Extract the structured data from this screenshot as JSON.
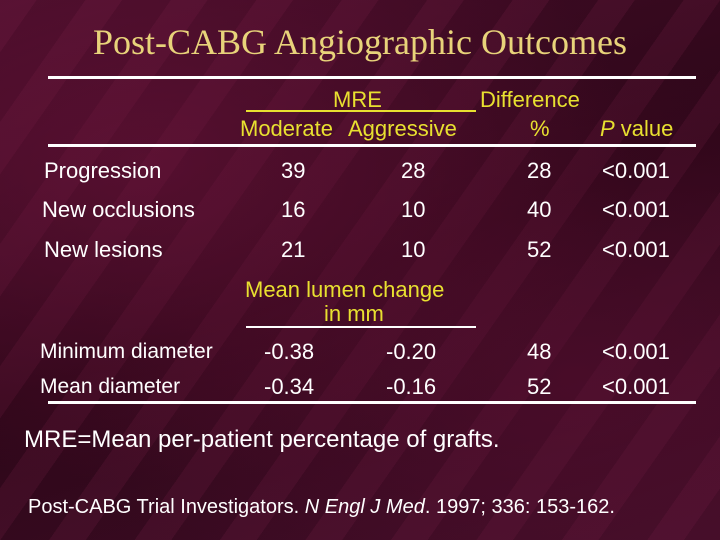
{
  "title": "Post-CABG Angiographic Outcomes",
  "header": {
    "mre": "MRE",
    "difference": "Difference",
    "moderate": "Moderate",
    "aggressive": "Aggressive",
    "percent": "%",
    "p_letter": "P",
    "p_value": " value"
  },
  "rows": [
    {
      "label": "Progression",
      "moderate": "39",
      "aggressive": "28",
      "difference": "28",
      "p": "<0.001"
    },
    {
      "label": "New occlusions",
      "moderate": "16",
      "aggressive": "10",
      "difference": "40",
      "p": "<0.001"
    },
    {
      "label": "New lesions",
      "moderate": "21",
      "aggressive": "10",
      "difference": "52",
      "p": "<0.001"
    }
  ],
  "lumen_header": {
    "line1": "Mean lumen change",
    "line2": "in mm"
  },
  "lumen_rows": [
    {
      "label": "Minimum diameter",
      "moderate": "-0.38",
      "aggressive": "-0.20",
      "difference": "48",
      "p": "<0.001"
    },
    {
      "label": "Mean diameter",
      "moderate": "-0.34",
      "aggressive": "-0.16",
      "difference": "52",
      "p": "<0.001"
    }
  ],
  "footnote": "MRE=Mean per-patient percentage of grafts.",
  "citation": {
    "authors": "Post-CABG Trial Investigators. ",
    "journal": "N Engl J Med",
    "details": ". 1997; 336: 153-162."
  }
}
